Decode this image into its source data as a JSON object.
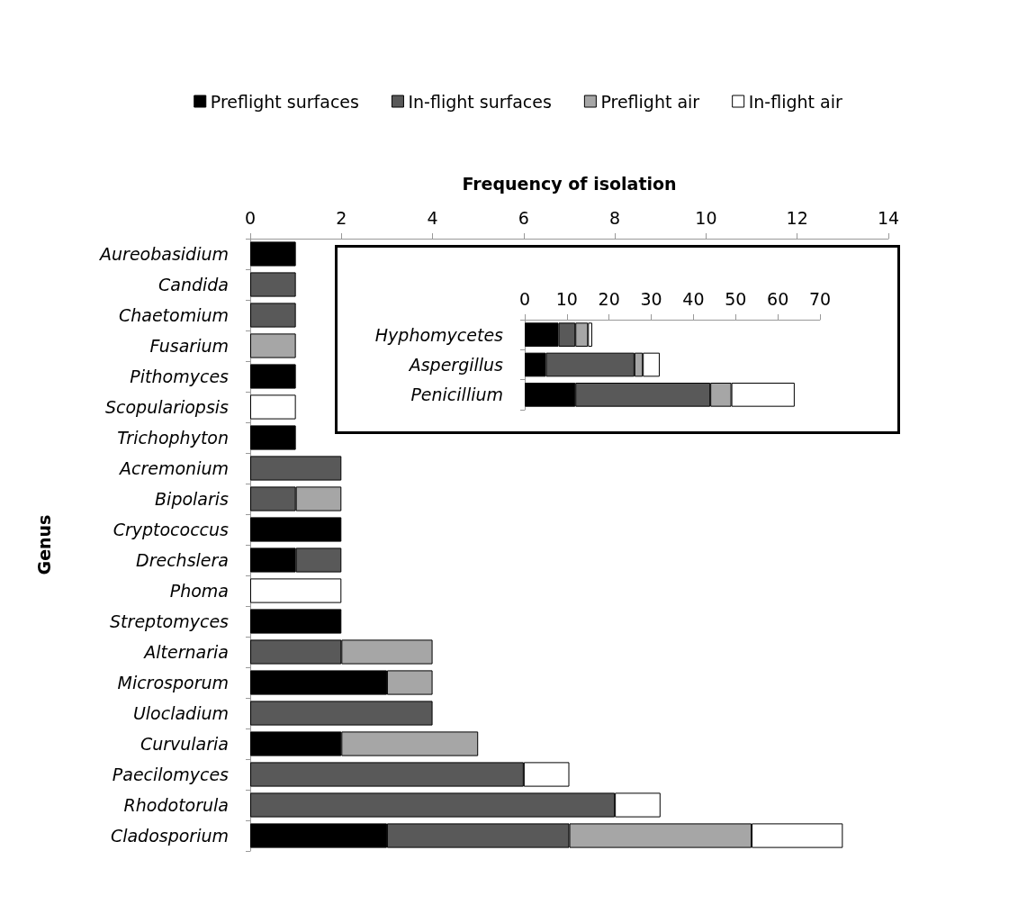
{
  "chart_data": [
    {
      "type": "bar",
      "orientation": "horizontal",
      "stacked": true,
      "xlabel": "Frequency of isolation",
      "ylabel": "Genus",
      "legend": "top",
      "grid": false,
      "categories": [
        "Aureobasidium",
        "Candida",
        "Chaetomium",
        "Fusarium",
        "Pithomyces",
        "Scopulariopsis",
        "Trichophyton",
        "Acremonium",
        "Bipolaris",
        "Cryptococcus",
        "Drechslera",
        "Phoma",
        "Streptomyces",
        "Alternaria",
        "Microsporum",
        "Ulocladium",
        "Curvularia",
        "Paecilomyces",
        "Rhodotorula",
        "Cladosporium"
      ],
      "xlim": [
        0,
        14
      ],
      "xticks": [
        0,
        2,
        4,
        6,
        8,
        10,
        12,
        14
      ],
      "series": [
        {
          "name": "Preflight surfaces",
          "color": "#000000",
          "values": [
            1,
            null,
            null,
            null,
            1,
            null,
            1,
            null,
            null,
            2,
            1,
            null,
            2,
            null,
            3,
            null,
            2,
            null,
            null,
            3
          ]
        },
        {
          "name": "In-flight surfaces",
          "color": "#595959",
          "values": [
            null,
            1,
            1,
            null,
            null,
            null,
            null,
            2,
            1,
            null,
            1,
            null,
            null,
            2,
            null,
            4,
            null,
            6,
            8,
            4
          ]
        },
        {
          "name": "Preflight air",
          "color": "#a6a6a6",
          "values": [
            null,
            null,
            null,
            1,
            null,
            null,
            null,
            null,
            1,
            null,
            null,
            null,
            null,
            2,
            1,
            null,
            3,
            null,
            null,
            4
          ]
        },
        {
          "name": "In-flight air",
          "color": "#ffffff",
          "values": [
            null,
            null,
            null,
            null,
            null,
            1,
            null,
            null,
            null,
            null,
            null,
            2,
            null,
            null,
            null,
            null,
            null,
            1,
            1,
            2
          ]
        }
      ]
    },
    {
      "type": "bar",
      "orientation": "horizontal",
      "stacked": true,
      "legend": false,
      "grid": false,
      "categories": [
        "Hyphomycetes",
        "Aspergillus",
        "Penicillium"
      ],
      "xlim": [
        0,
        70
      ],
      "xticks": [
        0,
        10,
        20,
        30,
        40,
        50,
        60,
        70
      ],
      "series": [
        {
          "color": "#000000",
          "values": [
            8,
            5,
            12
          ]
        },
        {
          "color": "#595959",
          "values": [
            4,
            21,
            32
          ]
        },
        {
          "color": "#a6a6a6",
          "values": [
            3,
            2,
            5
          ]
        },
        {
          "color": "#ffffff",
          "values": [
            1,
            4,
            15
          ]
        }
      ]
    }
  ]
}
